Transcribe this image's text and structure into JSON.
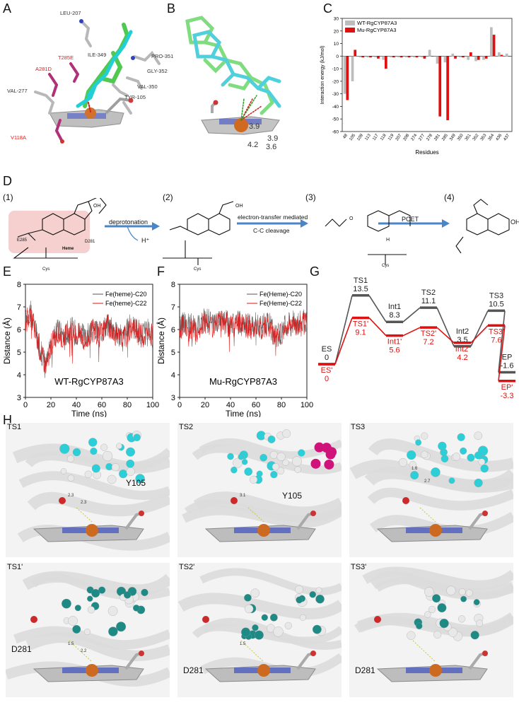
{
  "panels": {
    "A": {
      "label": "A",
      "residues_white": [
        "LEU-207",
        "ILE-349",
        "PRO-351",
        "GLY-352",
        "VAL-350",
        "TYR-105",
        "VAL-277"
      ],
      "residues_red": [
        "T285E",
        "A281D",
        "V118A"
      ]
    },
    "B": {
      "label": "B",
      "distances": [
        "3.9",
        "3.9",
        "4.2",
        "3.6"
      ]
    },
    "C": {
      "label": "C"
    },
    "D": {
      "label": "D",
      "steps": [
        "(1)",
        "(2)",
        "(3)",
        "(4)"
      ],
      "arrows": [
        "deprotonation",
        "electron-transfer mediated",
        "C-C cleavage",
        "PCET"
      ],
      "chem": {
        "hplus": "H⁺",
        "e285": "E285",
        "d281": "D281",
        "heme": "Heme",
        "cys": "Cys",
        "oh": "OH",
        "o": "O",
        "h": "H"
      }
    },
    "E": {
      "label": "E"
    },
    "F": {
      "label": "F"
    },
    "G": {
      "label": "G"
    },
    "H": {
      "label": "H",
      "tiles": [
        {
          "title": "TS1",
          "residue": "Y105",
          "dists": [
            "2.3",
            "2.3"
          ]
        },
        {
          "title": "TS2",
          "residue": "Y105",
          "dists": [
            "3.1"
          ]
        },
        {
          "title": "TS3",
          "residue": "",
          "dists": [
            "1.6",
            "2.7"
          ]
        },
        {
          "title": "TS1'",
          "residue": "D281",
          "dists": [
            "1.5",
            "2.2"
          ]
        },
        {
          "title": "TS2'",
          "residue": "D281",
          "dists": [
            "1.5"
          ]
        },
        {
          "title": "TS3'",
          "residue": "D281",
          "dists": []
        }
      ]
    }
  },
  "chart_data": [
    {
      "type": "bar",
      "panel": "C",
      "ylabel": "Interaction energy (kJ/mol)",
      "xlabel": "Residues",
      "ylim": [
        -60,
        30
      ],
      "yticks": [
        "30",
        "20",
        "10",
        "0",
        "-10",
        "-20",
        "-30",
        "-40",
        "-50",
        "-60"
      ],
      "categories": [
        "48",
        "105",
        "109",
        "113",
        "117",
        "118",
        "119",
        "207",
        "208",
        "274",
        "277",
        "278",
        "281",
        "285",
        "349",
        "350",
        "351",
        "352",
        "353",
        "354",
        "436",
        "437"
      ],
      "series": [
        {
          "name": "WT-RgCYP87A3",
          "color": "#bdbdbd",
          "values": [
            -30,
            -20,
            -1,
            -1,
            -1,
            -3,
            -1,
            -1,
            -1,
            -1,
            -1,
            5,
            -6,
            -5,
            2,
            -1,
            -3,
            -4,
            -3,
            23,
            3,
            2
          ]
        },
        {
          "name": "Mu-RgCYP87A3",
          "color": "#e01010",
          "values": [
            -35,
            5,
            -1,
            -1,
            -2,
            -10,
            -1,
            -1,
            -1,
            -1,
            -2,
            0,
            -48,
            -51,
            -2,
            -1,
            3,
            -3,
            -2,
            17,
            1,
            0
          ]
        }
      ],
      "legend_labels": [
        "WT-RgCYP87A3",
        "Mu-RgCYP87A3"
      ],
      "legend_position": "top-left"
    },
    {
      "type": "line",
      "panel": "E",
      "title": "WT-RgCYP87A3",
      "xlabel": "Time (ns)",
      "ylabel": "Distance (Å)",
      "xlim": [
        0,
        100
      ],
      "ylim": [
        3,
        8
      ],
      "xticks": [
        "0",
        "20",
        "40",
        "60",
        "80",
        "100"
      ],
      "yticks": [
        "3",
        "4",
        "5",
        "6",
        "7",
        "8"
      ],
      "legend_labels": [
        "Fe(heme)-C20",
        "Fe(heme)-C22"
      ],
      "series_colors": [
        "#555555",
        "#e01010"
      ],
      "base": [
        6.3,
        6.8,
        6.2,
        5.4,
        4.8,
        4.5,
        5.3,
        5.8,
        5.9,
        5.6,
        5.9,
        6.0,
        5.8,
        5.9,
        5.5,
        5.8,
        6.0,
        5.8,
        5.9,
        6.2,
        6.1,
        5.9,
        5.7,
        5.6,
        5.9,
        6.2,
        6.0,
        5.8,
        5.8,
        5.9,
        5.8
      ]
    },
    {
      "type": "line",
      "panel": "F",
      "title": "Mu-RgCYP87A3",
      "xlabel": "Time (ns)",
      "ylabel": "Distance (Å)",
      "xlim": [
        0,
        100
      ],
      "ylim": [
        3,
        8
      ],
      "xticks": [
        "0",
        "20",
        "40",
        "60",
        "80",
        "100"
      ],
      "yticks": [
        "3",
        "4",
        "5",
        "6",
        "7",
        "8"
      ],
      "legend_labels": [
        "Fe(Heme)-C20",
        "Fe(Heme)-C22"
      ],
      "series_colors": [
        "#555555",
        "#e01010"
      ],
      "base": [
        6.0,
        6.3,
        6.1,
        6.2,
        6.0,
        6.2,
        6.4,
        6.3,
        6.2,
        6.3,
        6.4,
        6.3,
        6.2,
        6.1,
        6.3,
        6.3,
        6.2,
        6.0,
        6.2,
        6.1,
        6.2,
        6.3,
        5.9,
        5.7,
        5.8,
        6.1,
        6.2,
        6.3,
        6.2,
        6.3,
        6.3
      ]
    },
    {
      "type": "line",
      "panel": "G",
      "states": [
        "ES",
        "TS1",
        "Int1",
        "TS2",
        "Int2",
        "TS3",
        "EP"
      ],
      "series": [
        {
          "name": "WT",
          "color": "#555555",
          "values": [
            0,
            13.5,
            8.3,
            11.1,
            3.5,
            10.5,
            -1.6
          ],
          "labels": [
            "ES",
            "TS1",
            "Int1",
            "TS2",
            "Int2",
            "TS3",
            "EP"
          ],
          "value_labels": [
            "0",
            "13.5",
            "8.3",
            "11.1",
            "3.5",
            "10.5",
            "-1.6"
          ]
        },
        {
          "name": "Mu",
          "color": "#e01010",
          "values": [
            0,
            9.1,
            5.6,
            7.2,
            4.2,
            7.6,
            -3.3
          ],
          "labels": [
            "ES'",
            "TS1'",
            "Int1'",
            "TS2'",
            "Int2'",
            "TS3'",
            "EP'"
          ],
          "value_labels": [
            "0",
            "9.1",
            "5.6",
            "7.2",
            "4.2",
            "7.6",
            "-3.3"
          ]
        }
      ]
    }
  ]
}
